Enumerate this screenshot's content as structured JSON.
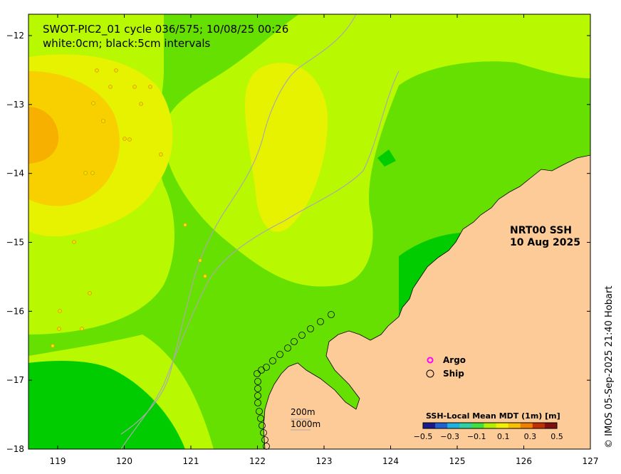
{
  "title": {
    "line1": "SWOT-PIC2_01 cycle 036/575; 10/08/25 00:26",
    "line2": "white:0cm; black:5cm intervals"
  },
  "product": {
    "line1": "NRT00 SSH",
    "line2": "10 Aug 2025"
  },
  "credit": "© IMOS 05-Sep-2025 21:40 Hobart",
  "legend": {
    "argo_label": "Argo",
    "ship_label": "Ship",
    "argo_color": "#ff00ff",
    "ship_color": "#000000"
  },
  "scale_labels": {
    "label_200m": "200m",
    "label_1000m": "1000m"
  },
  "colorbar": {
    "title": "SSH-Local Mean MDT (1m) [m]",
    "ticks": [
      "−0.5",
      "−0.3",
      "−0.1",
      "0.1",
      "0.3",
      "0.5"
    ],
    "colors": [
      "#1a1a8c",
      "#2060d0",
      "#20b0e0",
      "#30d0a0",
      "#40e040",
      "#b0f000",
      "#f0f000",
      "#f8c000",
      "#f08000",
      "#c03000",
      "#801010"
    ]
  },
  "axes": {
    "lon_ticks": [
      "119",
      "120",
      "121",
      "122",
      "123",
      "124",
      "125",
      "126",
      "127"
    ],
    "lat_ticks": [
      "−12",
      "−13",
      "−14",
      "−15",
      "−16",
      "−17",
      "−18"
    ]
  },
  "colors": {
    "land": "#fccb98",
    "sea_base": "#b8f800",
    "green": "#66e000",
    "dark_green": "#00cc00",
    "yellow": "#e6f200",
    "gold": "#f8d000",
    "orange": "#f8b000",
    "isobath": "#aaaaaa"
  }
}
